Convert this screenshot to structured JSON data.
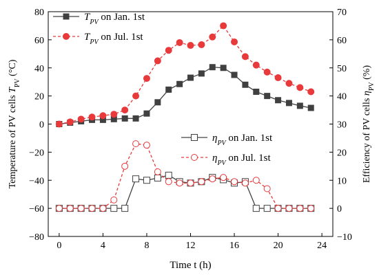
{
  "chart_data": {
    "type": "line",
    "xlabel": "Time t (h)",
    "x_ticks": [
      "0",
      "4",
      "8",
      "12",
      "16",
      "20",
      "24"
    ],
    "xlim": [
      -1,
      25
    ],
    "left_axis": {
      "label": "Temperature of PV cells T_PV (°C)",
      "ylim": [
        -80,
        80
      ],
      "ticks": [
        "−80",
        "−60",
        "−40",
        "−20",
        "0",
        "20",
        "40",
        "60",
        "80"
      ]
    },
    "right_axis": {
      "label": "Efficiency of PV cells η_PV (%)",
      "ylim": [
        -10,
        70
      ],
      "ticks": [
        "−10",
        "0",
        "10",
        "20",
        "30",
        "40",
        "50",
        "60",
        "70"
      ]
    },
    "series": [
      {
        "name": "T_PV on Jan. 1st",
        "axis": "left",
        "color": "#404040",
        "line": "solid",
        "marker": "filled-square",
        "x": [
          0,
          1,
          2,
          3,
          4,
          5,
          6,
          7,
          8,
          9,
          10,
          11,
          12,
          13,
          14,
          15,
          16,
          17,
          18,
          19,
          20,
          21,
          22,
          23
        ],
        "values": [
          0,
          1,
          2,
          3,
          3,
          3.5,
          4,
          4,
          7.5,
          15.5,
          24.5,
          28.5,
          33,
          36,
          40.5,
          40,
          35,
          28,
          23,
          20,
          17,
          15,
          13,
          11.5
        ]
      },
      {
        "name": "T_PV on Jul. 1st",
        "axis": "left",
        "color": "#e8393b",
        "line": "dashed",
        "marker": "filled-circle",
        "x": [
          0,
          1,
          2,
          3,
          4,
          5,
          6,
          7,
          8,
          9,
          10,
          11,
          12,
          13,
          14,
          15,
          16,
          17,
          18,
          19,
          20,
          21,
          22,
          23
        ],
        "values": [
          0,
          1.5,
          3.5,
          5,
          6,
          7,
          10,
          20,
          32.5,
          45,
          52.5,
          58,
          56,
          56.5,
          62,
          70,
          58.5,
          48,
          42,
          37,
          33,
          29,
          26,
          23
        ]
      },
      {
        "name": "η_PV on Jan. 1st",
        "axis": "right",
        "color": "#404040",
        "line": "solid",
        "marker": "open-square",
        "x": [
          0,
          1,
          2,
          3,
          4,
          5,
          6,
          7,
          8,
          9,
          10,
          11,
          12,
          13,
          14,
          15,
          16,
          17,
          18,
          19,
          20,
          21,
          22,
          23
        ],
        "values": [
          0,
          0,
          0,
          0,
          0,
          0,
          0,
          10.5,
          10,
          10.8,
          11.8,
          9.5,
          9,
          9.5,
          11,
          10.2,
          9,
          9.5,
          0,
          0,
          0,
          0,
          0,
          0
        ]
      },
      {
        "name": "η_PV on Jul. 1st",
        "axis": "right",
        "color": "#e8393b",
        "line": "dashed",
        "marker": "open-circle",
        "x": [
          0,
          1,
          2,
          3,
          4,
          5,
          6,
          7,
          8,
          9,
          10,
          11,
          12,
          13,
          14,
          15,
          16,
          17,
          18,
          19,
          20,
          21,
          22,
          23
        ],
        "values": [
          0,
          0,
          0,
          0,
          0,
          3,
          15,
          23,
          22.5,
          13,
          9.5,
          9,
          9,
          9.5,
          10.5,
          11,
          9.5,
          9,
          10,
          7,
          0,
          0,
          0,
          0
        ]
      }
    ],
    "legend_upper": {
      "placement": "top-left",
      "entries": [
        {
          "sym": "T",
          "sub": "PV",
          "rest": " on Jan. 1st"
        },
        {
          "sym": "T",
          "sub": "PV",
          "rest": " on Jul. 1st"
        }
      ]
    },
    "legend_lower": {
      "placement": "center-right",
      "entries": [
        {
          "sym": "η",
          "sub": "PV",
          "rest": " on Jan. 1st"
        },
        {
          "sym": "η",
          "sub": "PV",
          "rest": " on Jul. 1st"
        }
      ]
    }
  }
}
